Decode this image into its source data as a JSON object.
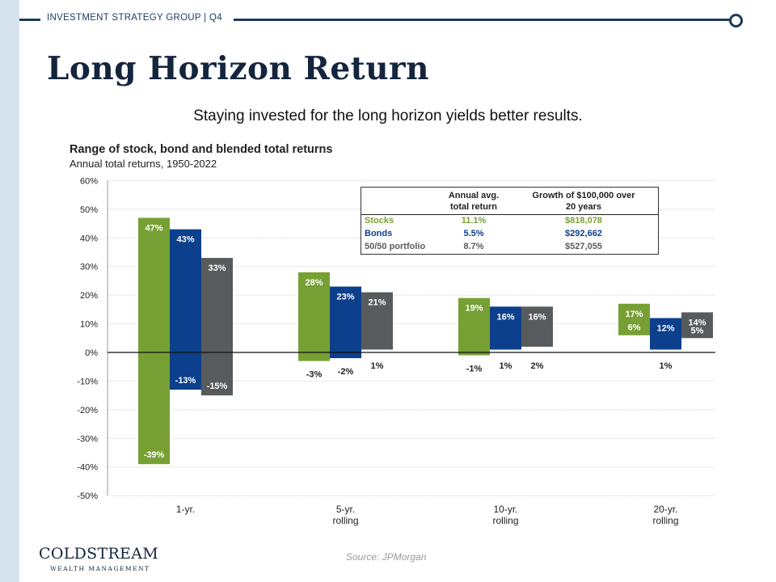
{
  "header": {
    "label": "INVESTMENT STRATEGY GROUP | Q4"
  },
  "page_title": "Long Horizon Return",
  "subtitle": "Staying invested for the long horizon yields better results.",
  "colors": {
    "stocks": "#77a034",
    "bonds": "#0c3f8c",
    "portfolio": "#585b5e",
    "navy": "#14253d",
    "band": "#d6e2ee"
  },
  "chart_data": {
    "type": "bar",
    "title": "Range of stock, bond and blended total returns",
    "subtitle": "Annual total returns, 1950-2022",
    "ylim": [
      -50,
      60
    ],
    "y_ticks": [
      60,
      50,
      40,
      30,
      20,
      10,
      0,
      -10,
      -20,
      -30,
      -40,
      -50
    ],
    "y_tick_labels": [
      "60%",
      "50%",
      "40%",
      "30%",
      "20%",
      "10%",
      "0%",
      "-10%",
      "-20%",
      "-30%",
      "-40%",
      "-50%"
    ],
    "categories": [
      {
        "line1": "1-yr.",
        "line2": ""
      },
      {
        "line1": "5-yr.",
        "line2": "rolling"
      },
      {
        "line1": "10-yr.",
        "line2": "rolling"
      },
      {
        "line1": "20-yr.",
        "line2": "rolling"
      }
    ],
    "series": [
      {
        "name": "Stocks",
        "color": "#77a034",
        "ranges": [
          [
            -39,
            47
          ],
          [
            -3,
            28
          ],
          [
            -1,
            19
          ],
          [
            6,
            17
          ]
        ],
        "max_labels": [
          "47%",
          "28%",
          "19%",
          "17%"
        ],
        "min_labels": [
          "-39%",
          "-3%",
          "-1%",
          "6%"
        ]
      },
      {
        "name": "Bonds",
        "color": "#0c3f8c",
        "ranges": [
          [
            -13,
            43
          ],
          [
            -2,
            23
          ],
          [
            1,
            16
          ],
          [
            1,
            12
          ]
        ],
        "max_labels": [
          "43%",
          "23%",
          "16%",
          "12%"
        ],
        "min_labels": [
          "-13%",
          "-2%",
          "1%",
          "1%"
        ]
      },
      {
        "name": "50/50 portfolio",
        "color": "#585b5e",
        "ranges": [
          [
            -15,
            33
          ],
          [
            1,
            21
          ],
          [
            2,
            16
          ],
          [
            5,
            14
          ]
        ],
        "max_labels": [
          "33%",
          "21%",
          "16%",
          "14%"
        ],
        "min_labels": [
          "-15%",
          "1%",
          "2%",
          "5%"
        ]
      }
    ],
    "legend_table": {
      "col1_header_1": "Annual avg.",
      "col1_header_2": "total return",
      "col2_header_1": "Growth of $100,000 over",
      "col2_header_2": "20 years",
      "rows": [
        {
          "name": "Stocks",
          "avg": "11.1%",
          "growth": "$818,078",
          "color": "#77a034"
        },
        {
          "name": "Bonds",
          "avg": "5.5%",
          "growth": "$292,662",
          "color": "#0c3f8c"
        },
        {
          "name": "50/50 portfolio",
          "avg": "8.7%",
          "growth": "$527,055",
          "color": "#585b5e"
        }
      ]
    }
  },
  "footer": {
    "logo_name": "COLDSTREAM",
    "logo_tagline": "WEALTH MANAGEMENT",
    "source": "Source: JPMorgan"
  }
}
